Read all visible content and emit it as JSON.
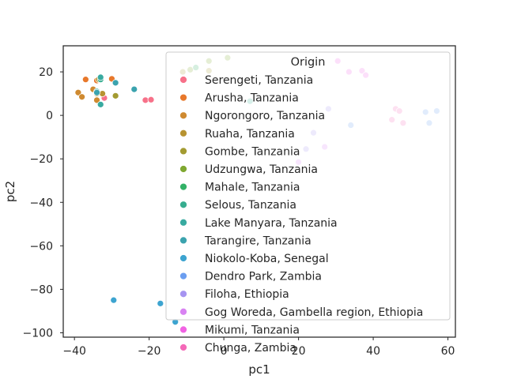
{
  "chart_data": {
    "type": "scatter",
    "xlabel": "pc1",
    "ylabel": "pc2",
    "xlim": [
      -43,
      62
    ],
    "ylim": [
      -102,
      32
    ],
    "xticks": [
      -40,
      -20,
      0,
      20,
      40,
      60
    ],
    "yticks": [
      20,
      0,
      -20,
      -40,
      -60,
      -80,
      -100
    ],
    "xtick_labels": [
      "−40",
      "−20",
      "0",
      "20",
      "40",
      "60"
    ],
    "ytick_labels": [
      "20",
      "0",
      "−20",
      "−40",
      "−60",
      "−80",
      "−100"
    ],
    "grid": false,
    "legend": {
      "title": "Origin",
      "placement": "upper right"
    },
    "series": [
      {
        "name": "Serengeti, Tanzania",
        "color": "#f77189",
        "points": [
          [
            -21,
            7
          ],
          [
            -19.5,
            7.2
          ],
          [
            -32,
            8
          ]
        ]
      },
      {
        "name": "Arusha, Tanzania",
        "color": "#e8782b",
        "points": [
          [
            -37,
            16.5
          ],
          [
            -30,
            16.8
          ],
          [
            -34,
            16
          ]
        ]
      },
      {
        "name": "Ngorongoro, Tanzania",
        "color": "#cf8a30",
        "points": [
          [
            -39,
            10.5
          ],
          [
            -38,
            8.5
          ],
          [
            -34,
            7
          ],
          [
            -35,
            12
          ]
        ]
      },
      {
        "name": "Ruaha, Tanzania",
        "color": "#b79331",
        "points": [
          [
            -34,
            10
          ],
          [
            -32.5,
            10
          ],
          [
            -33.5,
            16.5
          ]
        ]
      },
      {
        "name": "Gombe, Tanzania",
        "color": "#a39b31",
        "points": [
          [
            -29,
            9
          ],
          [
            -11,
            20
          ],
          [
            -4,
            20.5
          ]
        ]
      },
      {
        "name": "Udzungwa, Tanzania",
        "color": "#7fa831",
        "points": [
          [
            -4,
            25
          ],
          [
            1,
            26.5
          ],
          [
            -9,
            21
          ]
        ]
      },
      {
        "name": "Mahale, Tanzania",
        "color": "#32b166",
        "points": [
          [
            -7.5,
            22
          ]
        ]
      },
      {
        "name": "Selous, Tanzania",
        "color": "#36ad8f",
        "points": [
          [
            -33,
            16.5
          ],
          [
            7,
            6.5
          ]
        ]
      },
      {
        "name": "Lake Manyara, Tanzania",
        "color": "#38aaa0",
        "points": [
          [
            -33,
            17.5
          ],
          [
            -33,
            5
          ],
          [
            -34,
            11
          ]
        ]
      },
      {
        "name": "Tarangire, Tanzania",
        "color": "#3ba3ae",
        "points": [
          [
            -29,
            15
          ],
          [
            -24,
            12
          ],
          [
            -34,
            10.5
          ]
        ]
      },
      {
        "name": "Niokolo-Koba, Senegal",
        "color": "#3da4d0",
        "points": [
          [
            -29.5,
            -85
          ],
          [
            -17,
            -86.5
          ],
          [
            -13,
            -95
          ]
        ]
      },
      {
        "name": "Dendro Park, Zambia",
        "color": "#6b9ef0",
        "points": [
          [
            54,
            1.5
          ],
          [
            57,
            2
          ],
          [
            55,
            -3.5
          ],
          [
            34,
            -4.5
          ]
        ]
      },
      {
        "name": "Filoha, Ethiopia",
        "color": "#a694f1",
        "points": [
          [
            24,
            -8
          ],
          [
            22,
            -15.5
          ],
          [
            28,
            3
          ]
        ]
      },
      {
        "name": "Gog Woreda, Gambella region, Ethiopia",
        "color": "#d882f2",
        "points": [
          [
            27,
            -14.5
          ],
          [
            20,
            -21.5
          ]
        ]
      },
      {
        "name": "Mikumi, Tanzania",
        "color": "#f163e3",
        "points": [
          [
            30.5,
            25
          ],
          [
            33.5,
            20
          ],
          [
            37,
            20.5
          ],
          [
            38,
            18.5
          ]
        ]
      },
      {
        "name": "Chunga, Zambia",
        "color": "#f469b8",
        "points": [
          [
            46,
            3
          ],
          [
            47,
            2
          ],
          [
            45,
            -2
          ],
          [
            48,
            -3.5
          ]
        ]
      }
    ]
  }
}
